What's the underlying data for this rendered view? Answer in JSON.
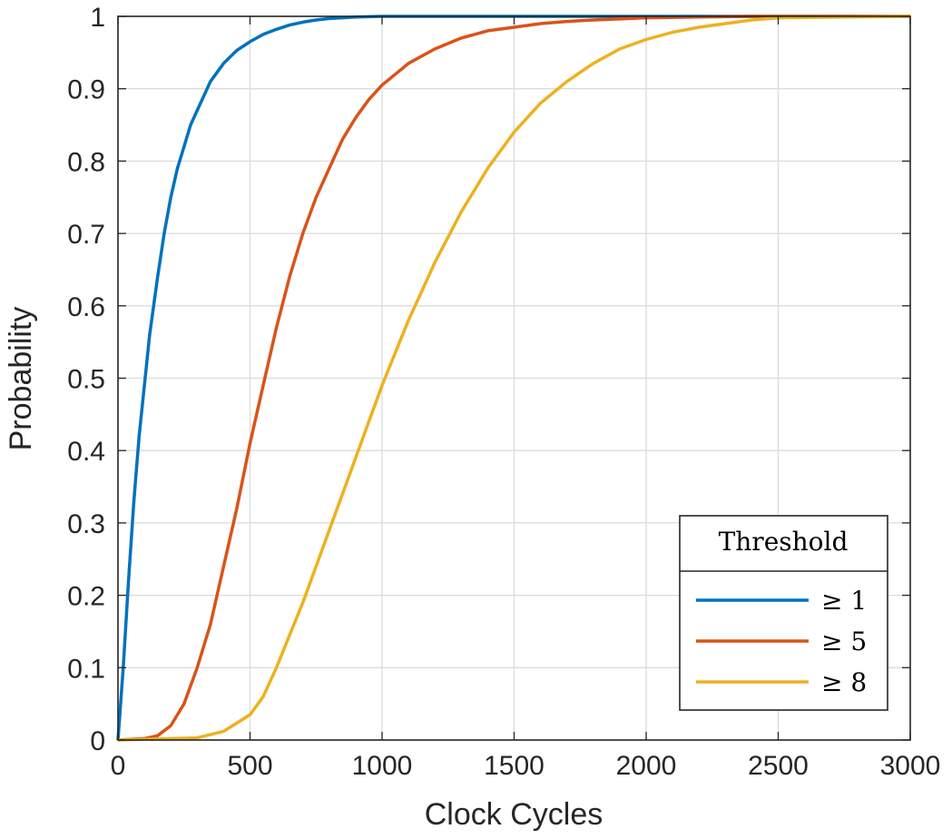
{
  "chart_data": {
    "type": "line",
    "xlabel": "Clock Cycles",
    "ylabel": "Probability",
    "xlim": [
      0,
      3000
    ],
    "ylim": [
      0,
      1
    ],
    "xticks": [
      0,
      500,
      1000,
      1500,
      2000,
      2500,
      3000
    ],
    "yticks": [
      0,
      0.1,
      0.2,
      0.3,
      0.4,
      0.5,
      0.6,
      0.7,
      0.8,
      0.9,
      1
    ],
    "xtick_labels": [
      "0",
      "500",
      "1000",
      "1500",
      "2000",
      "2500",
      "3000"
    ],
    "ytick_labels": [
      "0",
      "0.1",
      "0.2",
      "0.3",
      "0.4",
      "0.5",
      "0.6",
      "0.7",
      "0.8",
      "0.9",
      "1"
    ],
    "grid": true,
    "box": true,
    "legend": {
      "title": "Threshold",
      "location": "bottom-right"
    },
    "series": [
      {
        "name": "≥ 1",
        "color": "#0072BD",
        "x": [
          0,
          10,
          20,
          40,
          60,
          80,
          100,
          120,
          150,
          175,
          200,
          225,
          250,
          275,
          300,
          350,
          400,
          450,
          500,
          550,
          600,
          650,
          700,
          750,
          800,
          900,
          1000,
          1200,
          1500,
          2000,
          2500,
          3000
        ],
        "y": [
          0,
          0.05,
          0.1,
          0.22,
          0.33,
          0.42,
          0.49,
          0.56,
          0.64,
          0.7,
          0.75,
          0.79,
          0.82,
          0.85,
          0.87,
          0.91,
          0.935,
          0.953,
          0.965,
          0.975,
          0.982,
          0.988,
          0.992,
          0.995,
          0.997,
          0.999,
          1.0,
          1.0,
          1.0,
          1.0,
          1.0,
          1.0
        ]
      },
      {
        "name": "≥ 5",
        "color": "#D95319",
        "x": [
          0,
          100,
          150,
          200,
          250,
          300,
          350,
          400,
          450,
          500,
          550,
          600,
          650,
          700,
          750,
          800,
          850,
          900,
          950,
          1000,
          1050,
          1100,
          1200,
          1300,
          1400,
          1500,
          1600,
          1700,
          1800,
          2000,
          2200,
          2400,
          2500,
          3000
        ],
        "y": [
          0,
          0.002,
          0.006,
          0.02,
          0.05,
          0.1,
          0.16,
          0.24,
          0.32,
          0.41,
          0.49,
          0.57,
          0.64,
          0.7,
          0.75,
          0.79,
          0.83,
          0.86,
          0.885,
          0.905,
          0.92,
          0.935,
          0.955,
          0.97,
          0.98,
          0.985,
          0.99,
          0.993,
          0.995,
          0.998,
          0.999,
          1.0,
          1.0,
          1.0
        ]
      },
      {
        "name": "≥ 8",
        "color": "#EDB120",
        "x": [
          0,
          300,
          400,
          500,
          550,
          600,
          650,
          700,
          750,
          800,
          850,
          900,
          950,
          1000,
          1050,
          1100,
          1150,
          1200,
          1300,
          1400,
          1500,
          1600,
          1700,
          1800,
          1900,
          2000,
          2100,
          2200,
          2300,
          2400,
          2500,
          3000
        ],
        "y": [
          0,
          0.003,
          0.012,
          0.035,
          0.06,
          0.1,
          0.145,
          0.19,
          0.24,
          0.29,
          0.34,
          0.39,
          0.44,
          0.49,
          0.535,
          0.58,
          0.62,
          0.66,
          0.73,
          0.79,
          0.84,
          0.88,
          0.91,
          0.935,
          0.955,
          0.968,
          0.978,
          0.985,
          0.99,
          0.995,
          0.998,
          1.0
        ]
      }
    ]
  }
}
